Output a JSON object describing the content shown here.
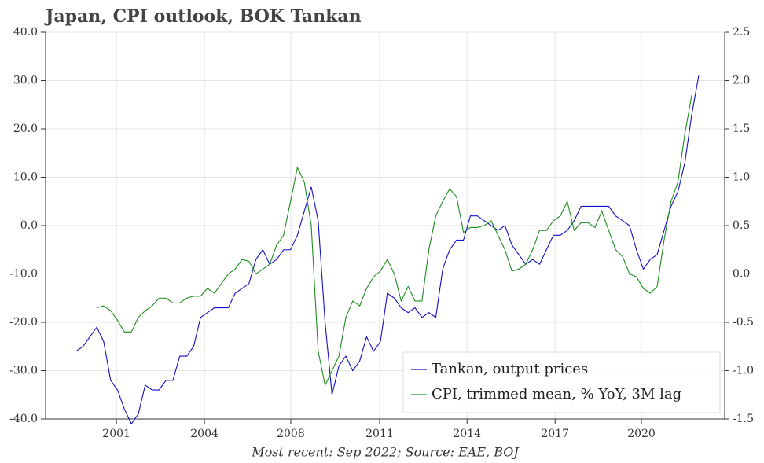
{
  "chart_data": {
    "type": "line",
    "title": "Japan, CPI outlook, BOK Tankan",
    "footnote": "Most recent: Sep 2022; Source: EAE, BOJ",
    "x": [
      2000.25,
      2000.5,
      2000.75,
      2001,
      2001.25,
      2001.5,
      2001.75,
      2002,
      2002.25,
      2002.5,
      2002.75,
      2003,
      2003.25,
      2003.5,
      2003.75,
      2004,
      2004.25,
      2004.5,
      2004.75,
      2005,
      2005.25,
      2005.5,
      2005.75,
      2006,
      2006.25,
      2006.5,
      2006.75,
      2007,
      2007.25,
      2007.5,
      2007.75,
      2008,
      2008.25,
      2008.5,
      2008.75,
      2009,
      2009.25,
      2009.5,
      2009.75,
      2010,
      2010.25,
      2010.5,
      2010.75,
      2011,
      2011.25,
      2011.5,
      2011.75,
      2012,
      2012.25,
      2012.5,
      2012.75,
      2013,
      2013.25,
      2013.5,
      2013.75,
      2014,
      2014.25,
      2014.5,
      2014.75,
      2015,
      2015.25,
      2015.5,
      2015.75,
      2016,
      2016.25,
      2016.5,
      2016.75,
      2017,
      2017.25,
      2017.5,
      2017.75,
      2018,
      2018.25,
      2018.5,
      2018.75,
      2019,
      2019.25,
      2019.5,
      2019.75,
      2020,
      2020.25,
      2020.5,
      2020.75,
      2021,
      2021.25,
      2021.5,
      2021.75,
      2022,
      2022.25,
      2022.5,
      2022.75
    ],
    "series": [
      {
        "name": "Tankan, output prices",
        "color": "#1010c8",
        "axis": "y",
        "values": [
          -26,
          -25,
          -23,
          -21,
          -24,
          -32,
          -34,
          -38,
          -41,
          -39,
          -33,
          -34,
          -34,
          -32,
          -32,
          -27,
          -27,
          -25,
          -19,
          -18,
          -17,
          -17,
          -17,
          -14,
          -13,
          -12,
          -7,
          -5,
          -8,
          -7,
          -5,
          -5,
          -2,
          3,
          8,
          1,
          -20,
          -35,
          -29,
          -27,
          -30,
          -28,
          -23,
          -26,
          -24,
          -14,
          -15,
          -17,
          -18,
          -17,
          -19,
          -18,
          -19,
          -9,
          -5,
          -3,
          -3,
          2,
          2,
          1,
          0,
          -1,
          0,
          -4,
          -6,
          -8,
          -7,
          -8,
          -5,
          -2,
          -2,
          -1,
          1,
          4,
          4,
          4,
          4,
          4,
          2,
          1,
          0,
          -5,
          -9,
          -7,
          -6,
          -1,
          4,
          7,
          13,
          23,
          31
        ]
      },
      {
        "name": "CPI, trimmed mean, % YoY, 3M lag",
        "color": "#1e8c1e",
        "axis": "y2",
        "values": [
          null,
          null,
          null,
          -0.35,
          -0.33,
          -0.38,
          -0.48,
          -0.6,
          -0.6,
          -0.45,
          -0.38,
          -0.33,
          -0.25,
          -0.25,
          -0.3,
          -0.3,
          -0.25,
          -0.23,
          -0.23,
          -0.15,
          -0.2,
          -0.1,
          0.0,
          0.05,
          0.15,
          0.13,
          0.0,
          0.05,
          0.1,
          0.3,
          0.4,
          0.75,
          1.1,
          0.95,
          0.5,
          -0.8,
          -1.15,
          -1.0,
          -0.85,
          -0.45,
          -0.28,
          -0.33,
          -0.15,
          -0.03,
          0.03,
          0.15,
          0.0,
          -0.28,
          -0.13,
          -0.28,
          -0.28,
          0.25,
          0.6,
          0.75,
          0.88,
          0.8,
          0.43,
          0.48,
          0.48,
          0.5,
          0.55,
          0.4,
          0.25,
          0.03,
          0.05,
          0.1,
          0.25,
          0.45,
          0.45,
          0.55,
          0.6,
          0.75,
          0.45,
          0.53,
          0.53,
          0.48,
          0.65,
          0.45,
          0.25,
          0.18,
          0.0,
          -0.03,
          -0.15,
          -0.2,
          -0.13,
          0.35,
          0.75,
          0.95,
          1.45,
          1.85,
          null
        ]
      }
    ],
    "xlim": [
      1999.15,
      2023.69
    ],
    "xticks": [
      {
        "value": 2001.71,
        "label": "2001"
      },
      {
        "value": 2004.89,
        "label": "2004"
      },
      {
        "value": 2008.01,
        "label": "2008"
      },
      {
        "value": 2011.22,
        "label": "2011"
      },
      {
        "value": 2014.38,
        "label": "2014"
      },
      {
        "value": 2017.56,
        "label": "2017"
      },
      {
        "value": 2020.68,
        "label": "2020"
      }
    ],
    "ylim": [
      -40,
      40
    ],
    "yticks": [
      {
        "value": -40,
        "label": "-40.0"
      },
      {
        "value": -30,
        "label": "-30.0"
      },
      {
        "value": -20,
        "label": "-20.0"
      },
      {
        "value": -10,
        "label": "-10.0"
      },
      {
        "value": 0,
        "label": "0.0"
      },
      {
        "value": 10,
        "label": "10.0"
      },
      {
        "value": 20,
        "label": "20.0"
      },
      {
        "value": 30,
        "label": "30.0"
      },
      {
        "value": 40,
        "label": "40.0"
      }
    ],
    "y2lim": [
      -1.5,
      2.5
    ],
    "y2ticks": [
      -1.5,
      {
        "value": -1,
        "label": "-1.0"
      },
      -0.5,
      {
        "value": 0,
        "label": "0.0"
      },
      0.5,
      {
        "value": 1,
        "label": "1.0"
      },
      1.5,
      {
        "value": 2,
        "label": "2.0"
      },
      2.5
    ],
    "grid": true,
    "legend": "lower right"
  }
}
